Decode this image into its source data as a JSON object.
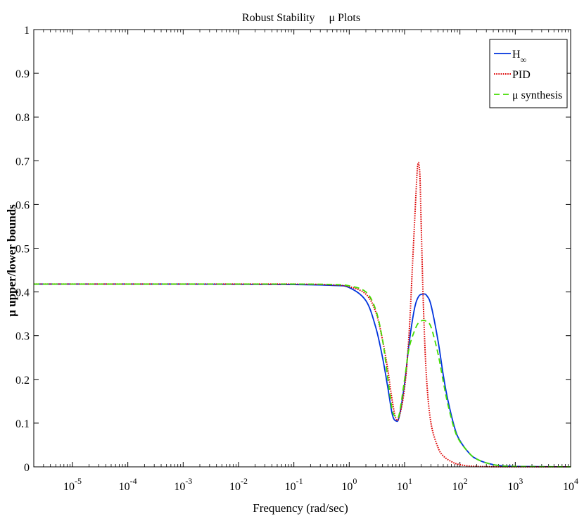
{
  "chart_data": {
    "type": "line",
    "title": "Robust Stability     μ Plots",
    "xlabel": "Frequency (rad/sec)",
    "ylabel": "μ upper/lower bounds",
    "x_scale": "log",
    "xlim": [
      2e-06,
      10000
    ],
    "ylim": [
      0,
      1
    ],
    "y_ticks": [
      0,
      0.1,
      0.2,
      0.3,
      0.4,
      0.5,
      0.6,
      0.7,
      0.8,
      0.9,
      1
    ],
    "y_tick_labels": [
      "0",
      "0.1",
      "0.2",
      "0.3",
      "0.4",
      "0.5",
      "0.6",
      "0.7",
      "0.8",
      "0.9",
      "1"
    ],
    "x_ticks": [
      1e-05,
      0.0001,
      0.001,
      0.01,
      0.1,
      1,
      10,
      100,
      1000,
      10000
    ],
    "x_tick_labels": [
      {
        "base": "10",
        "exp": "-5"
      },
      {
        "base": "10",
        "exp": "-4"
      },
      {
        "base": "10",
        "exp": "-3"
      },
      {
        "base": "10",
        "exp": "-2"
      },
      {
        "base": "10",
        "exp": "-1"
      },
      {
        "base": "10",
        "exp": "0"
      },
      {
        "base": "10",
        "exp": "1"
      },
      {
        "base": "10",
        "exp": "2"
      },
      {
        "base": "10",
        "exp": "3"
      },
      {
        "base": "10",
        "exp": "4"
      }
    ],
    "grid": false,
    "legend_position": "top-right",
    "series": [
      {
        "name": "H∞",
        "legend_base": "H",
        "legend_sub": "∞",
        "color": "#0033dd",
        "dash": "solid",
        "x": [
          2e-06,
          0.001,
          0.1,
          0.5,
          1,
          2,
          3,
          4,
          5,
          6,
          7,
          8,
          10,
          12,
          15,
          18,
          22,
          25,
          30,
          40,
          50,
          60,
          80,
          100,
          150,
          200,
          300,
          500,
          1000,
          10000
        ],
        "y": [
          0.418,
          0.418,
          0.417,
          0.415,
          0.41,
          0.38,
          0.32,
          0.25,
          0.18,
          0.12,
          0.105,
          0.115,
          0.19,
          0.28,
          0.36,
          0.39,
          0.395,
          0.392,
          0.37,
          0.29,
          0.21,
          0.155,
          0.09,
          0.06,
          0.03,
          0.018,
          0.009,
          0.003,
          0.001,
          0
        ]
      },
      {
        "name": "PID",
        "color": "#dd0000",
        "dash": "dotted",
        "x": [
          2e-06,
          0.001,
          0.1,
          0.5,
          1,
          2,
          3,
          4,
          5,
          6,
          7,
          8,
          10,
          12,
          14,
          16,
          17,
          18,
          19,
          20,
          22,
          25,
          30,
          40,
          50,
          70,
          100,
          200,
          1000,
          10000
        ],
        "y": [
          0.418,
          0.418,
          0.418,
          0.416,
          0.412,
          0.395,
          0.355,
          0.29,
          0.22,
          0.15,
          0.11,
          0.115,
          0.18,
          0.3,
          0.47,
          0.62,
          0.68,
          0.695,
          0.66,
          0.55,
          0.36,
          0.2,
          0.1,
          0.045,
          0.025,
          0.012,
          0.005,
          0.001,
          0,
          0
        ]
      },
      {
        "name": "μ synthesis",
        "color": "#44dd00",
        "dash": "dashed",
        "x": [
          2e-06,
          0.001,
          0.1,
          0.5,
          1,
          2,
          3,
          4,
          5,
          6,
          7,
          8,
          10,
          12,
          15,
          18,
          22,
          25,
          30,
          40,
          50,
          60,
          80,
          100,
          150,
          200,
          300,
          500,
          1000,
          10000
        ],
        "y": [
          0.418,
          0.418,
          0.418,
          0.417,
          0.414,
          0.4,
          0.36,
          0.29,
          0.2,
          0.13,
          0.115,
          0.12,
          0.2,
          0.27,
          0.31,
          0.33,
          0.335,
          0.332,
          0.32,
          0.26,
          0.195,
          0.145,
          0.085,
          0.058,
          0.03,
          0.018,
          0.009,
          0.003,
          0.001,
          0
        ]
      }
    ]
  }
}
